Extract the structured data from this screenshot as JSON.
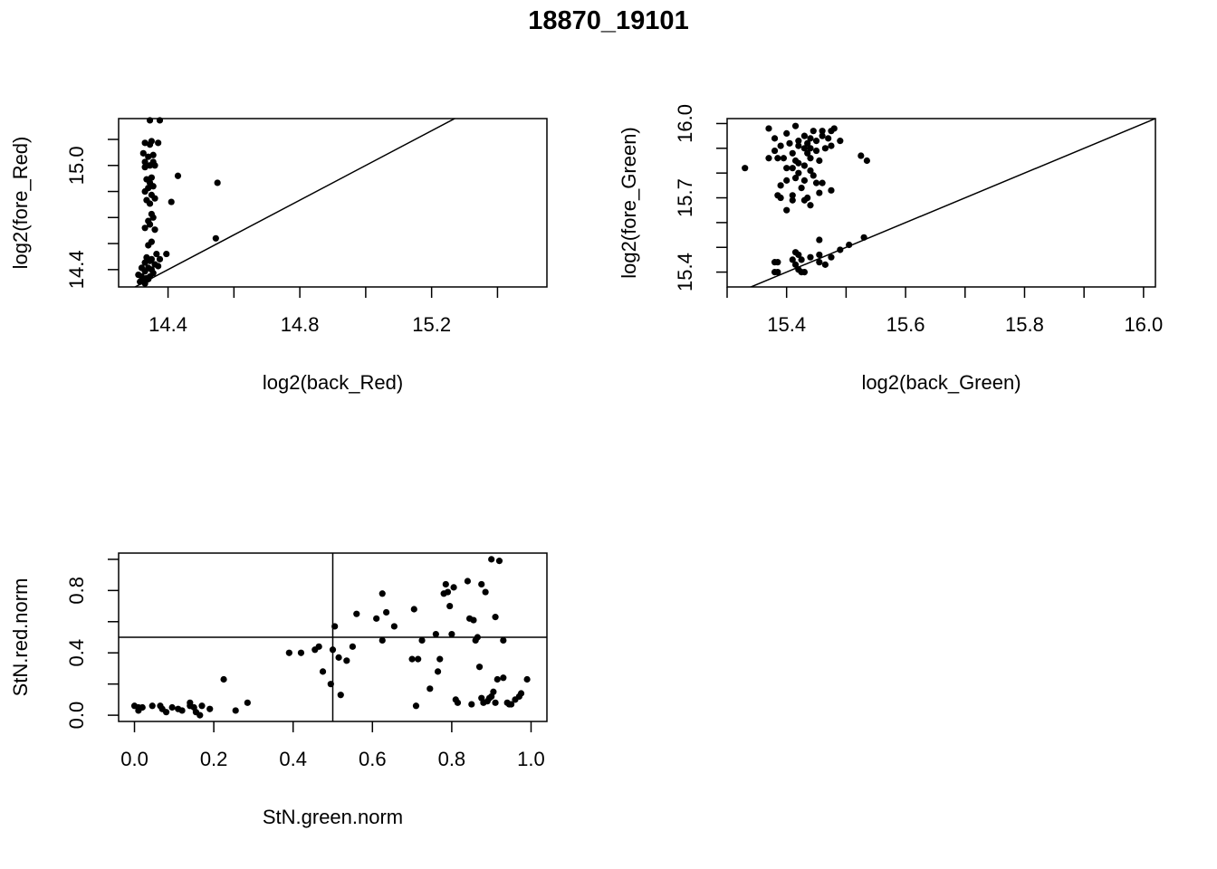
{
  "title": "18870_19101",
  "chart_data": [
    {
      "id": "red",
      "type": "scatter",
      "xlabel": "log2(back_Red)",
      "ylabel": "log2(fore_Red)",
      "xlim": [
        14.25,
        15.55
      ],
      "ylim": [
        14.3,
        15.27
      ],
      "xticks": [
        14.4,
        14.6,
        14.8,
        15.0,
        15.2,
        15.4
      ],
      "xtick_labels": [
        "14.4",
        "",
        "14.8",
        "",
        "15.2",
        ""
      ],
      "yticks": [
        14.4,
        14.55,
        14.7,
        14.85,
        15.0,
        15.15,
        15.3
      ],
      "ytick_labels": [
        "14.4",
        "",
        "",
        "",
        "15.0",
        "",
        ""
      ],
      "ref_lines": [
        {
          "type": "abline",
          "a": 0,
          "b": 1
        }
      ],
      "points": [
        [
          14.345,
          15.26
        ],
        [
          14.375,
          15.26
        ],
        [
          14.35,
          15.14
        ],
        [
          14.37,
          15.13
        ],
        [
          14.33,
          15.13
        ],
        [
          14.345,
          15.12
        ],
        [
          14.325,
          15.07
        ],
        [
          14.355,
          15.06
        ],
        [
          14.34,
          15.05
        ],
        [
          14.33,
          15.02
        ],
        [
          14.355,
          15.02
        ],
        [
          14.345,
          15.0
        ],
        [
          14.36,
          15.0
        ],
        [
          14.33,
          14.99
        ],
        [
          14.43,
          14.94
        ],
        [
          14.55,
          14.9
        ],
        [
          14.35,
          14.93
        ],
        [
          14.335,
          14.92
        ],
        [
          14.345,
          14.9
        ],
        [
          14.355,
          14.88
        ],
        [
          14.34,
          14.87
        ],
        [
          14.33,
          14.85
        ],
        [
          14.35,
          14.83
        ],
        [
          14.36,
          14.81
        ],
        [
          14.335,
          14.8
        ],
        [
          14.41,
          14.79
        ],
        [
          14.345,
          14.78
        ],
        [
          14.35,
          14.72
        ],
        [
          14.355,
          14.7
        ],
        [
          14.34,
          14.68
        ],
        [
          14.345,
          14.66
        ],
        [
          14.33,
          14.64
        ],
        [
          14.36,
          14.63
        ],
        [
          14.545,
          14.58
        ],
        [
          14.35,
          14.56
        ],
        [
          14.34,
          14.54
        ],
        [
          14.395,
          14.49
        ],
        [
          14.365,
          14.49
        ],
        [
          14.335,
          14.47
        ],
        [
          14.35,
          14.46
        ],
        [
          14.375,
          14.46
        ],
        [
          14.345,
          14.45
        ],
        [
          14.33,
          14.44
        ],
        [
          14.36,
          14.43
        ],
        [
          14.37,
          14.42
        ],
        [
          14.32,
          14.41
        ],
        [
          14.34,
          14.41
        ],
        [
          14.35,
          14.4
        ],
        [
          14.33,
          14.39
        ],
        [
          14.355,
          14.38
        ],
        [
          14.31,
          14.37
        ],
        [
          14.32,
          14.36
        ],
        [
          14.335,
          14.35
        ],
        [
          14.345,
          14.36
        ],
        [
          14.325,
          14.34
        ],
        [
          14.315,
          14.33
        ],
        [
          14.33,
          14.32
        ],
        [
          14.34,
          14.345
        ]
      ]
    },
    {
      "id": "green",
      "type": "scatter",
      "xlabel": "log2(back_Green)",
      "ylabel": "log2(fore_Green)",
      "xlim": [
        15.3,
        16.02
      ],
      "ylim": [
        15.34,
        16.02
      ],
      "xticks": [
        15.3,
        15.4,
        15.5,
        15.6,
        15.7,
        15.8,
        15.9,
        16.0
      ],
      "xtick_labels": [
        "",
        "15.4",
        "",
        "15.6",
        "",
        "15.8",
        "",
        "16.0"
      ],
      "yticks": [
        15.4,
        15.5,
        15.6,
        15.7,
        15.8,
        15.9,
        16.0
      ],
      "ytick_labels": [
        "15.4",
        "",
        "",
        "15.7",
        "",
        "",
        "16.0"
      ],
      "ref_lines": [
        {
          "type": "abline",
          "a": 0,
          "b": 1
        }
      ],
      "points": [
        [
          15.415,
          15.99
        ],
        [
          15.37,
          15.98
        ],
        [
          15.445,
          15.97
        ],
        [
          15.475,
          15.97
        ],
        [
          15.46,
          15.97
        ],
        [
          15.48,
          15.98
        ],
        [
          15.4,
          15.96
        ],
        [
          15.43,
          15.95
        ],
        [
          15.44,
          15.94
        ],
        [
          15.46,
          15.95
        ],
        [
          15.38,
          15.94
        ],
        [
          15.47,
          15.94
        ],
        [
          15.49,
          15.93
        ],
        [
          15.42,
          15.93
        ],
        [
          15.45,
          15.93
        ],
        [
          15.435,
          15.92
        ],
        [
          15.405,
          15.92
        ],
        [
          15.39,
          15.91
        ],
        [
          15.42,
          15.91
        ],
        [
          15.475,
          15.91
        ],
        [
          15.465,
          15.9
        ],
        [
          15.44,
          15.9
        ],
        [
          15.43,
          15.9
        ],
        [
          15.45,
          15.89
        ],
        [
          15.38,
          15.89
        ],
        [
          15.41,
          15.88
        ],
        [
          15.435,
          15.88
        ],
        [
          15.525,
          15.87
        ],
        [
          15.37,
          15.86
        ],
        [
          15.385,
          15.86
        ],
        [
          15.395,
          15.86
        ],
        [
          15.44,
          15.86
        ],
        [
          15.455,
          15.85
        ],
        [
          15.415,
          15.85
        ],
        [
          15.535,
          15.85
        ],
        [
          15.42,
          15.84
        ],
        [
          15.43,
          15.83
        ],
        [
          15.33,
          15.82
        ],
        [
          15.4,
          15.82
        ],
        [
          15.41,
          15.82
        ],
        [
          15.44,
          15.81
        ],
        [
          15.42,
          15.8
        ],
        [
          15.445,
          15.79
        ],
        [
          15.415,
          15.78
        ],
        [
          15.4,
          15.77
        ],
        [
          15.43,
          15.77
        ],
        [
          15.45,
          15.76
        ],
        [
          15.46,
          15.76
        ],
        [
          15.39,
          15.75
        ],
        [
          15.425,
          15.74
        ],
        [
          15.475,
          15.73
        ],
        [
          15.455,
          15.72
        ],
        [
          15.41,
          15.71
        ],
        [
          15.385,
          15.71
        ],
        [
          15.39,
          15.7
        ],
        [
          15.435,
          15.7
        ],
        [
          15.41,
          15.69
        ],
        [
          15.43,
          15.69
        ],
        [
          15.44,
          15.67
        ],
        [
          15.4,
          15.65
        ],
        [
          15.53,
          15.54
        ],
        [
          15.455,
          15.53
        ],
        [
          15.505,
          15.51
        ],
        [
          15.49,
          15.49
        ],
        [
          15.415,
          15.48
        ],
        [
          15.455,
          15.47
        ],
        [
          15.42,
          15.47
        ],
        [
          15.44,
          15.46
        ],
        [
          15.475,
          15.46
        ],
        [
          15.41,
          15.45
        ],
        [
          15.425,
          15.45
        ],
        [
          15.455,
          15.44
        ],
        [
          15.385,
          15.44
        ],
        [
          15.38,
          15.44
        ],
        [
          15.415,
          15.43
        ],
        [
          15.465,
          15.43
        ],
        [
          15.42,
          15.41
        ],
        [
          15.43,
          15.4
        ],
        [
          15.425,
          15.4
        ],
        [
          15.38,
          15.4
        ],
        [
          15.385,
          15.4
        ]
      ]
    },
    {
      "id": "stn",
      "type": "scatter",
      "xlabel": "StN.green.norm",
      "ylabel": "StN.red.norm",
      "xlim": [
        -0.04,
        1.04
      ],
      "ylim": [
        -0.04,
        1.04
      ],
      "xticks": [
        0.0,
        0.2,
        0.4,
        0.6,
        0.8,
        1.0
      ],
      "xtick_labels": [
        "0.0",
        "0.2",
        "0.4",
        "0.6",
        "0.8",
        "1.0"
      ],
      "yticks": [
        0.0,
        0.2,
        0.4,
        0.6,
        0.8,
        1.0
      ],
      "ytick_labels": [
        "0.0",
        "",
        "0.4",
        "",
        "0.8",
        ""
      ],
      "ref_lines": [
        {
          "type": "vline",
          "x": 0.5
        },
        {
          "type": "hline",
          "y": 0.5
        }
      ],
      "points": [
        [
          0.0,
          0.06
        ],
        [
          0.01,
          0.05
        ],
        [
          0.02,
          0.05
        ],
        [
          0.01,
          0.03
        ],
        [
          0.045,
          0.06
        ],
        [
          0.065,
          0.06
        ],
        [
          0.07,
          0.04
        ],
        [
          0.08,
          0.02
        ],
        [
          0.095,
          0.05
        ],
        [
          0.11,
          0.04
        ],
        [
          0.12,
          0.03
        ],
        [
          0.14,
          0.06
        ],
        [
          0.14,
          0.08
        ],
        [
          0.15,
          0.05
        ],
        [
          0.155,
          0.02
        ],
        [
          0.165,
          0.0
        ],
        [
          0.17,
          0.06
        ],
        [
          0.19,
          0.04
        ],
        [
          0.225,
          0.23
        ],
        [
          0.255,
          0.03
        ],
        [
          0.285,
          0.08
        ],
        [
          0.39,
          0.4
        ],
        [
          0.42,
          0.4
        ],
        [
          0.455,
          0.42
        ],
        [
          0.465,
          0.44
        ],
        [
          0.475,
          0.28
        ],
        [
          0.495,
          0.2
        ],
        [
          0.5,
          0.42
        ],
        [
          0.505,
          0.57
        ],
        [
          0.515,
          0.37
        ],
        [
          0.52,
          0.13
        ],
        [
          0.535,
          0.35
        ],
        [
          0.55,
          0.44
        ],
        [
          0.56,
          0.65
        ],
        [
          0.61,
          0.62
        ],
        [
          0.625,
          0.48
        ],
        [
          0.625,
          0.78
        ],
        [
          0.635,
          0.66
        ],
        [
          0.655,
          0.57
        ],
        [
          0.7,
          0.36
        ],
        [
          0.705,
          0.68
        ],
        [
          0.71,
          0.06
        ],
        [
          0.715,
          0.36
        ],
        [
          0.725,
          0.48
        ],
        [
          0.745,
          0.17
        ],
        [
          0.76,
          0.52
        ],
        [
          0.765,
          0.28
        ],
        [
          0.77,
          0.36
        ],
        [
          0.78,
          0.78
        ],
        [
          0.785,
          0.84
        ],
        [
          0.79,
          0.79
        ],
        [
          0.795,
          0.7
        ],
        [
          0.8,
          0.52
        ],
        [
          0.805,
          0.82
        ],
        [
          0.81,
          0.1
        ],
        [
          0.815,
          0.08
        ],
        [
          0.84,
          0.86
        ],
        [
          0.845,
          0.62
        ],
        [
          0.85,
          0.07
        ],
        [
          0.855,
          0.61
        ],
        [
          0.86,
          0.48
        ],
        [
          0.865,
          0.5
        ],
        [
          0.87,
          0.31
        ],
        [
          0.875,
          0.84
        ],
        [
          0.875,
          0.11
        ],
        [
          0.88,
          0.08
        ],
        [
          0.885,
          0.79
        ],
        [
          0.89,
          0.09
        ],
        [
          0.895,
          0.11
        ],
        [
          0.9,
          0.12
        ],
        [
          0.9,
          1.0
        ],
        [
          0.905,
          0.15
        ],
        [
          0.91,
          0.63
        ],
        [
          0.91,
          0.08
        ],
        [
          0.915,
          0.23
        ],
        [
          0.92,
          0.99
        ],
        [
          0.93,
          0.24
        ],
        [
          0.93,
          0.48
        ],
        [
          0.94,
          0.08
        ],
        [
          0.945,
          0.07
        ],
        [
          0.95,
          0.07
        ],
        [
          0.96,
          0.1
        ],
        [
          0.97,
          0.12
        ],
        [
          0.975,
          0.14
        ],
        [
          0.99,
          0.23
        ]
      ]
    }
  ]
}
